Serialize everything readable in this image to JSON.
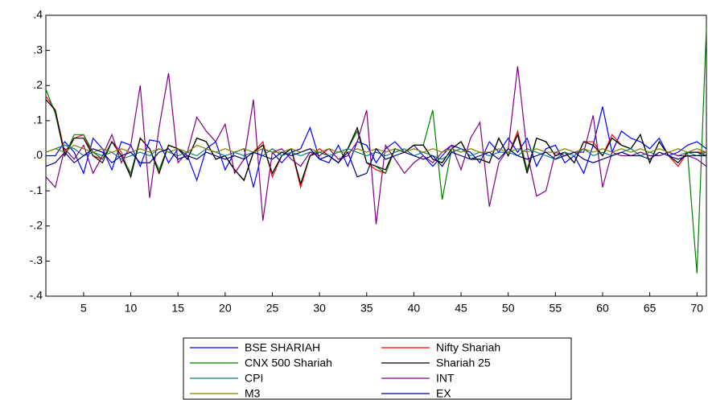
{
  "chart_data": {
    "type": "line",
    "x": [
      1,
      2,
      3,
      4,
      5,
      6,
      7,
      8,
      9,
      10,
      11,
      12,
      13,
      14,
      15,
      16,
      17,
      18,
      19,
      20,
      21,
      22,
      23,
      24,
      25,
      26,
      27,
      28,
      29,
      30,
      31,
      32,
      33,
      34,
      35,
      36,
      37,
      38,
      39,
      40,
      41,
      42,
      43,
      44,
      45,
      46,
      47,
      48,
      49,
      50,
      51,
      52,
      53,
      54,
      55,
      56,
      57,
      58,
      59,
      60,
      61,
      62,
      63,
      64,
      65,
      66,
      67,
      68,
      69,
      70,
      71
    ],
    "xlim": [
      1,
      71
    ],
    "xticks": [
      5,
      10,
      15,
      20,
      25,
      30,
      35,
      40,
      45,
      50,
      55,
      60,
      65,
      70
    ],
    "ylim": [
      -0.4,
      0.4
    ],
    "yticks": [
      {
        "value": -0.4,
        "label": "-.4"
      },
      {
        "value": -0.3,
        "label": "-.3"
      },
      {
        "value": -0.2,
        "label": "-.2"
      },
      {
        "value": -0.1,
        "label": "-.1"
      },
      {
        "value": 0,
        "label": ".0"
      },
      {
        "value": 0.1,
        "label": ".1"
      },
      {
        "value": 0.2,
        "label": ".2"
      },
      {
        "value": 0.3,
        "label": ".3"
      },
      {
        "value": 0.4,
        "label": ".4"
      }
    ],
    "grid": false,
    "legend": "bottom",
    "series": [
      {
        "name": "BSE SHARIAH",
        "color": "#0000ff",
        "values": [
          0.0,
          0.0,
          0.04,
          0.01,
          -0.05,
          0.05,
          0.02,
          -0.04,
          0.04,
          0.03,
          -0.03,
          0.045,
          0.04,
          -0.02,
          0.02,
          0.0,
          -0.07,
          0.02,
          0.04,
          -0.04,
          0.01,
          0.02,
          -0.09,
          0.02,
          0.01,
          -0.02,
          0.01,
          0.02,
          0.08,
          -0.01,
          -0.02,
          0.03,
          -0.03,
          0.04,
          0.03,
          -0.02,
          0.02,
          0.04,
          0.01,
          0.03,
          0.0,
          -0.03,
          0.0,
          0.03,
          0.02,
          0.01,
          -0.02,
          0.04,
          0.01,
          0.05,
          0.01,
          0.05,
          -0.03,
          0.02,
          0.03,
          -0.02,
          0.0,
          -0.05,
          0.03,
          0.14,
          0.01,
          0.07,
          0.05,
          0.04,
          0.02,
          0.05,
          0.0,
          0.01,
          0.03,
          0.04,
          0.02
        ]
      },
      {
        "name": "Nifty Shariah",
        "color": "#ff0000",
        "values": [
          0.17,
          0.13,
          0.01,
          0.05,
          0.06,
          0.0,
          -0.01,
          0.04,
          0.01,
          -0.06,
          0.05,
          0.02,
          -0.05,
          0.03,
          0.02,
          -0.01,
          0.05,
          0.04,
          -0.01,
          0.0,
          -0.04,
          -0.07,
          0.01,
          0.04,
          -0.06,
          0.0,
          0.02,
          -0.09,
          0.0,
          0.02,
          0.0,
          -0.02,
          0.02,
          0.07,
          -0.02,
          -0.04,
          -0.05,
          0.02,
          0.01,
          0.03,
          0.03,
          -0.01,
          -0.02,
          0.02,
          0.04,
          -0.01,
          -0.01,
          -0.02,
          0.05,
          0.0,
          0.07,
          -0.04,
          0.05,
          0.04,
          0.0,
          0.01,
          -0.02,
          0.04,
          0.04,
          0.0,
          0.06,
          0.03,
          0.02,
          0.06,
          -0.02,
          0.04,
          0.0,
          -0.03,
          0.01,
          0.01,
          0.01
        ]
      },
      {
        "name": "CNX 500 Shariah",
        "color": "#008000",
        "values": [
          0.19,
          0.12,
          0.0,
          0.06,
          0.06,
          0.01,
          -0.01,
          0.04,
          0.0,
          -0.05,
          0.05,
          0.02,
          -0.04,
          0.03,
          0.02,
          -0.01,
          0.05,
          0.04,
          -0.01,
          0.0,
          -0.04,
          -0.07,
          0.01,
          0.03,
          -0.05,
          0.0,
          0.02,
          -0.08,
          0.0,
          0.01,
          0.0,
          -0.02,
          0.02,
          0.07,
          -0.02,
          -0.03,
          -0.05,
          0.02,
          0.01,
          0.03,
          0.03,
          0.13,
          -0.125,
          0.02,
          0.04,
          -0.01,
          -0.01,
          -0.02,
          0.05,
          0.0,
          0.06,
          -0.04,
          0.05,
          0.04,
          0.0,
          0.01,
          -0.02,
          0.04,
          0.03,
          0.0,
          0.05,
          0.03,
          0.02,
          0.06,
          -0.02,
          0.04,
          0.0,
          -0.02,
          0.01,
          -0.335,
          0.365
        ]
      },
      {
        "name": "Shariah 25",
        "color": "#000000",
        "values": [
          0.16,
          0.13,
          0.0,
          0.05,
          0.05,
          0.0,
          -0.02,
          0.04,
          0.0,
          -0.06,
          0.05,
          0.02,
          -0.05,
          0.03,
          0.02,
          -0.01,
          0.05,
          0.04,
          -0.01,
          0.0,
          -0.04,
          -0.07,
          0.01,
          0.03,
          -0.05,
          0.0,
          0.02,
          -0.08,
          0.0,
          0.01,
          0.0,
          -0.02,
          0.02,
          0.08,
          -0.02,
          -0.03,
          -0.04,
          0.02,
          0.01,
          0.03,
          0.03,
          -0.01,
          -0.02,
          0.02,
          0.04,
          -0.01,
          -0.01,
          -0.02,
          0.05,
          0.0,
          0.06,
          -0.05,
          0.05,
          0.04,
          0.0,
          0.01,
          -0.02,
          0.04,
          0.03,
          0.0,
          0.05,
          0.03,
          0.02,
          0.06,
          -0.02,
          0.04,
          0.0,
          -0.02,
          0.01,
          0.01,
          0.0
        ]
      },
      {
        "name": "CPI",
        "color": "#008080",
        "values": [
          0.01,
          0.02,
          0.03,
          0.02,
          0.0,
          0.01,
          0.0,
          0.01,
          -0.01,
          0.0,
          0.01,
          0.0,
          0.02,
          0.01,
          0.0,
          0.01,
          0.0,
          0.02,
          0.01,
          0.0,
          0.01,
          0.0,
          0.01,
          0.0,
          0.02,
          0.0,
          0.01,
          0.0,
          0.01,
          0.01,
          0.0,
          0.01,
          0.02,
          0.01,
          0.0,
          0.01,
          0.0,
          0.01,
          0.02,
          0.0,
          0.01,
          0.0,
          -0.01,
          0.01,
          0.02,
          0.0,
          0.01,
          0.0,
          0.01,
          0.01,
          0.0,
          0.02,
          0.01,
          0.0,
          -0.01,
          0.01,
          0.0,
          0.02,
          0.0,
          0.01,
          0.0,
          0.01,
          0.02,
          0.0,
          0.01,
          0.0,
          0.01,
          0.0,
          0.01,
          0.0,
          0.01
        ]
      },
      {
        "name": "INT",
        "color": "#800080",
        "values": [
          -0.06,
          -0.09,
          0.02,
          -0.01,
          0.03,
          -0.05,
          0.0,
          0.06,
          -0.02,
          0.03,
          0.2,
          -0.12,
          0.08,
          0.235,
          -0.02,
          0.01,
          0.11,
          0.07,
          0.04,
          0.09,
          -0.05,
          -0.01,
          0.16,
          -0.185,
          0.01,
          0.02,
          -0.01,
          -0.03,
          0.01,
          0.0,
          0.02,
          -0.01,
          0.0,
          0.04,
          0.13,
          -0.195,
          0.03,
          -0.01,
          -0.05,
          -0.02,
          0.0,
          -0.02,
          0.01,
          0.03,
          -0.04,
          0.05,
          0.095,
          -0.145,
          -0.02,
          0.02,
          0.255,
          0.01,
          -0.115,
          -0.1,
          0.01,
          0.0,
          0.01,
          0.01,
          0.115,
          -0.09,
          0.01,
          0.0,
          0.0,
          0.01,
          0.0,
          0.0,
          0.01,
          0.0,
          0.0,
          -0.01,
          -0.03
        ]
      },
      {
        "name": "M3",
        "color": "#808000",
        "values": [
          0.01,
          0.02,
          0.01,
          0.03,
          0.02,
          0.01,
          0.02,
          0.01,
          0.02,
          0.01,
          0.02,
          0.01,
          0.02,
          0.01,
          0.02,
          0.01,
          0.03,
          0.02,
          0.01,
          0.02,
          0.01,
          0.02,
          0.01,
          0.02,
          0.01,
          0.01,
          0.02,
          0.01,
          0.02,
          0.01,
          0.02,
          0.01,
          0.01,
          0.02,
          0.01,
          0.02,
          0.01,
          0.02,
          0.01,
          0.02,
          0.01,
          0.02,
          0.01,
          0.02,
          0.01,
          0.02,
          0.01,
          0.01,
          0.02,
          0.01,
          0.02,
          0.01,
          0.02,
          0.01,
          0.01,
          0.02,
          0.01,
          0.02,
          0.01,
          0.02,
          0.01,
          0.02,
          0.01,
          0.02,
          0.01,
          0.02,
          0.01,
          0.02,
          0.01,
          0.02,
          0.01
        ]
      },
      {
        "name": "EX",
        "color": "#000080",
        "values": [
          -0.03,
          -0.02,
          0.01,
          -0.02,
          0.0,
          0.02,
          0.01,
          -0.02,
          0.0,
          0.01,
          -0.02,
          -0.02,
          0.01,
          0.02,
          -0.01,
          0.0,
          -0.01,
          0.01,
          0.0,
          -0.01,
          0.0,
          -0.01,
          0.01,
          0.0,
          -0.01,
          0.01,
          0.0,
          0.01,
          0.02,
          -0.01,
          0.0,
          -0.02,
          0.01,
          -0.06,
          -0.05,
          0.02,
          -0.01,
          0.0,
          0.01,
          0.0,
          -0.01,
          0.0,
          -0.03,
          0.01,
          0.0,
          -0.01,
          0.0,
          0.01,
          -0.01,
          0.02,
          0.0,
          -0.01,
          0.0,
          0.01,
          -0.01,
          0.0,
          0.01,
          -0.01,
          -0.02,
          -0.01,
          0.0,
          0.01,
          0.0,
          0.0,
          -0.01,
          0.01,
          0.0,
          -0.01,
          0.0,
          0.0,
          0.0
        ]
      }
    ]
  }
}
